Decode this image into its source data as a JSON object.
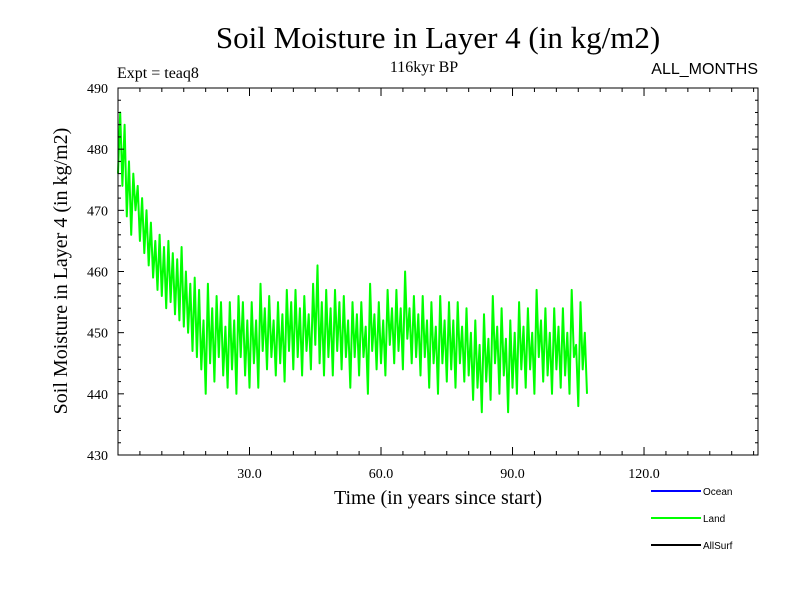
{
  "chart_data": {
    "type": "line",
    "title": "Soil Moisture in Layer 4 (in kg/m2)",
    "subtitle_left": "Expt = teaq8",
    "subtitle_center": "116kyr BP",
    "subtitle_right": "ALL_MONTHS",
    "xlabel": "Time (in years since start)",
    "ylabel": "Soil Moisture in Layer 4 (in kg/m2)",
    "xlim": [
      0,
      146
    ],
    "ylim": [
      430,
      490
    ],
    "xticks": [
      30,
      60,
      90,
      120
    ],
    "xtick_labels": [
      "30.0",
      "60.0",
      "90.0",
      "120.0"
    ],
    "yticks": [
      430,
      440,
      450,
      460,
      470,
      480,
      490
    ],
    "ytick_labels": [
      "430",
      "440",
      "450",
      "460",
      "470",
      "480",
      "490"
    ],
    "legend": [
      {
        "name": "Ocean",
        "color": "#0000ff"
      },
      {
        "name": "Land",
        "color": "#00ff00"
      },
      {
        "name": "AllSurf",
        "color": "#000000"
      }
    ],
    "series": [
      {
        "name": "Land",
        "color": "#00ff00",
        "sample_step_years": 0.5,
        "values": [
          476,
          486,
          474,
          484,
          469,
          478,
          466,
          476,
          470,
          474,
          465,
          472,
          463,
          470,
          461,
          468,
          459,
          465,
          457,
          466,
          456,
          464,
          454,
          465,
          455,
          463,
          453,
          462,
          452,
          464,
          451,
          460,
          450,
          458,
          447,
          459,
          446,
          457,
          444,
          452,
          440,
          458,
          445,
          454,
          442,
          456,
          446,
          455,
          443,
          451,
          441,
          455,
          444,
          452,
          440,
          456,
          446,
          455,
          443,
          452,
          441,
          455,
          445,
          452,
          441,
          458,
          447,
          454,
          444,
          456,
          446,
          452,
          443,
          455,
          445,
          453,
          442,
          457,
          447,
          455,
          444,
          457,
          446,
          454,
          443,
          456,
          447,
          453,
          444,
          458,
          448,
          461,
          445,
          455,
          443,
          457,
          446,
          454,
          443,
          457,
          447,
          455,
          444,
          456,
          446,
          452,
          441,
          455,
          446,
          453,
          443,
          455,
          446,
          451,
          440,
          458,
          447,
          453,
          444,
          455,
          445,
          452,
          443,
          457,
          448,
          454,
          445,
          457,
          447,
          454,
          444,
          460,
          449,
          454,
          445,
          456,
          446,
          453,
          443,
          456,
          446,
          452,
          441,
          455,
          445,
          451,
          440,
          456,
          445,
          452,
          442,
          455,
          444,
          452,
          441,
          455,
          445,
          451,
          442,
          454,
          443,
          450,
          439,
          452,
          441,
          448,
          437,
          453,
          442,
          449,
          439,
          456,
          445,
          451,
          440,
          454,
          443,
          449,
          437,
          452,
          441,
          450,
          440,
          455,
          444,
          451,
          441,
          454,
          444,
          450,
          440,
          457,
          446,
          452,
          442,
          454,
          443,
          450,
          440,
          454,
          444,
          451,
          441,
          454,
          443,
          450,
          440,
          457,
          446,
          448,
          438,
          455,
          444,
          450,
          440
        ]
      }
    ]
  }
}
